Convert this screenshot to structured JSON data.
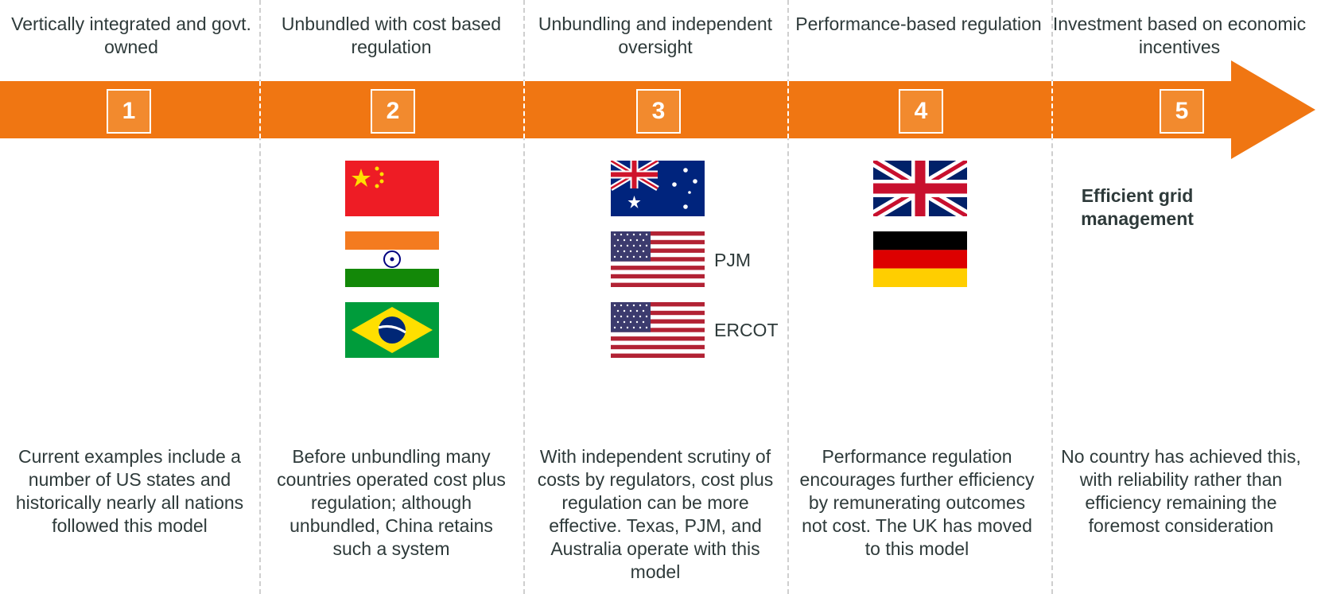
{
  "colors": {
    "accent": "#f07612",
    "box_fill": "#f28a2e",
    "text": "#2e3a3a"
  },
  "stages": [
    {
      "number": "1",
      "title": "Vertically integrated and govt. owned",
      "description": "Current examples include a number of US states and historically nearly all nations followed this model"
    },
    {
      "number": "2",
      "title": "Unbundled with cost based regulation",
      "description": "Before unbundling many countries operated cost plus regulation; although unbundled, China retains such a system"
    },
    {
      "number": "3",
      "title": "Unbundling and independent oversight",
      "description": "With independent scrutiny of costs by regulators, cost plus regulation can be more effective. Texas, PJM, and Australia operate with this model"
    },
    {
      "number": "4",
      "title": "Performance-based regulation",
      "description": "Performance regulation encourages further efficiency by remunerating outcomes not cost. The UK has moved to this model"
    },
    {
      "number": "5",
      "title": "Investment based on economic incentives",
      "description": "No country has achieved this, with reliability rather than efficiency remaining the foremost consideration"
    }
  ],
  "flags": {
    "stage2": [
      "china-flag",
      "india-flag",
      "brazil-flag"
    ],
    "stage3": [
      "australia-flag",
      "usa-flag",
      "usa-flag"
    ],
    "stage4": [
      "uk-flag",
      "germany-flag"
    ]
  },
  "flag_notes": {
    "pjm": "PJM",
    "ercot": "ERCOT"
  },
  "stage5_callout": "Efficient grid management"
}
